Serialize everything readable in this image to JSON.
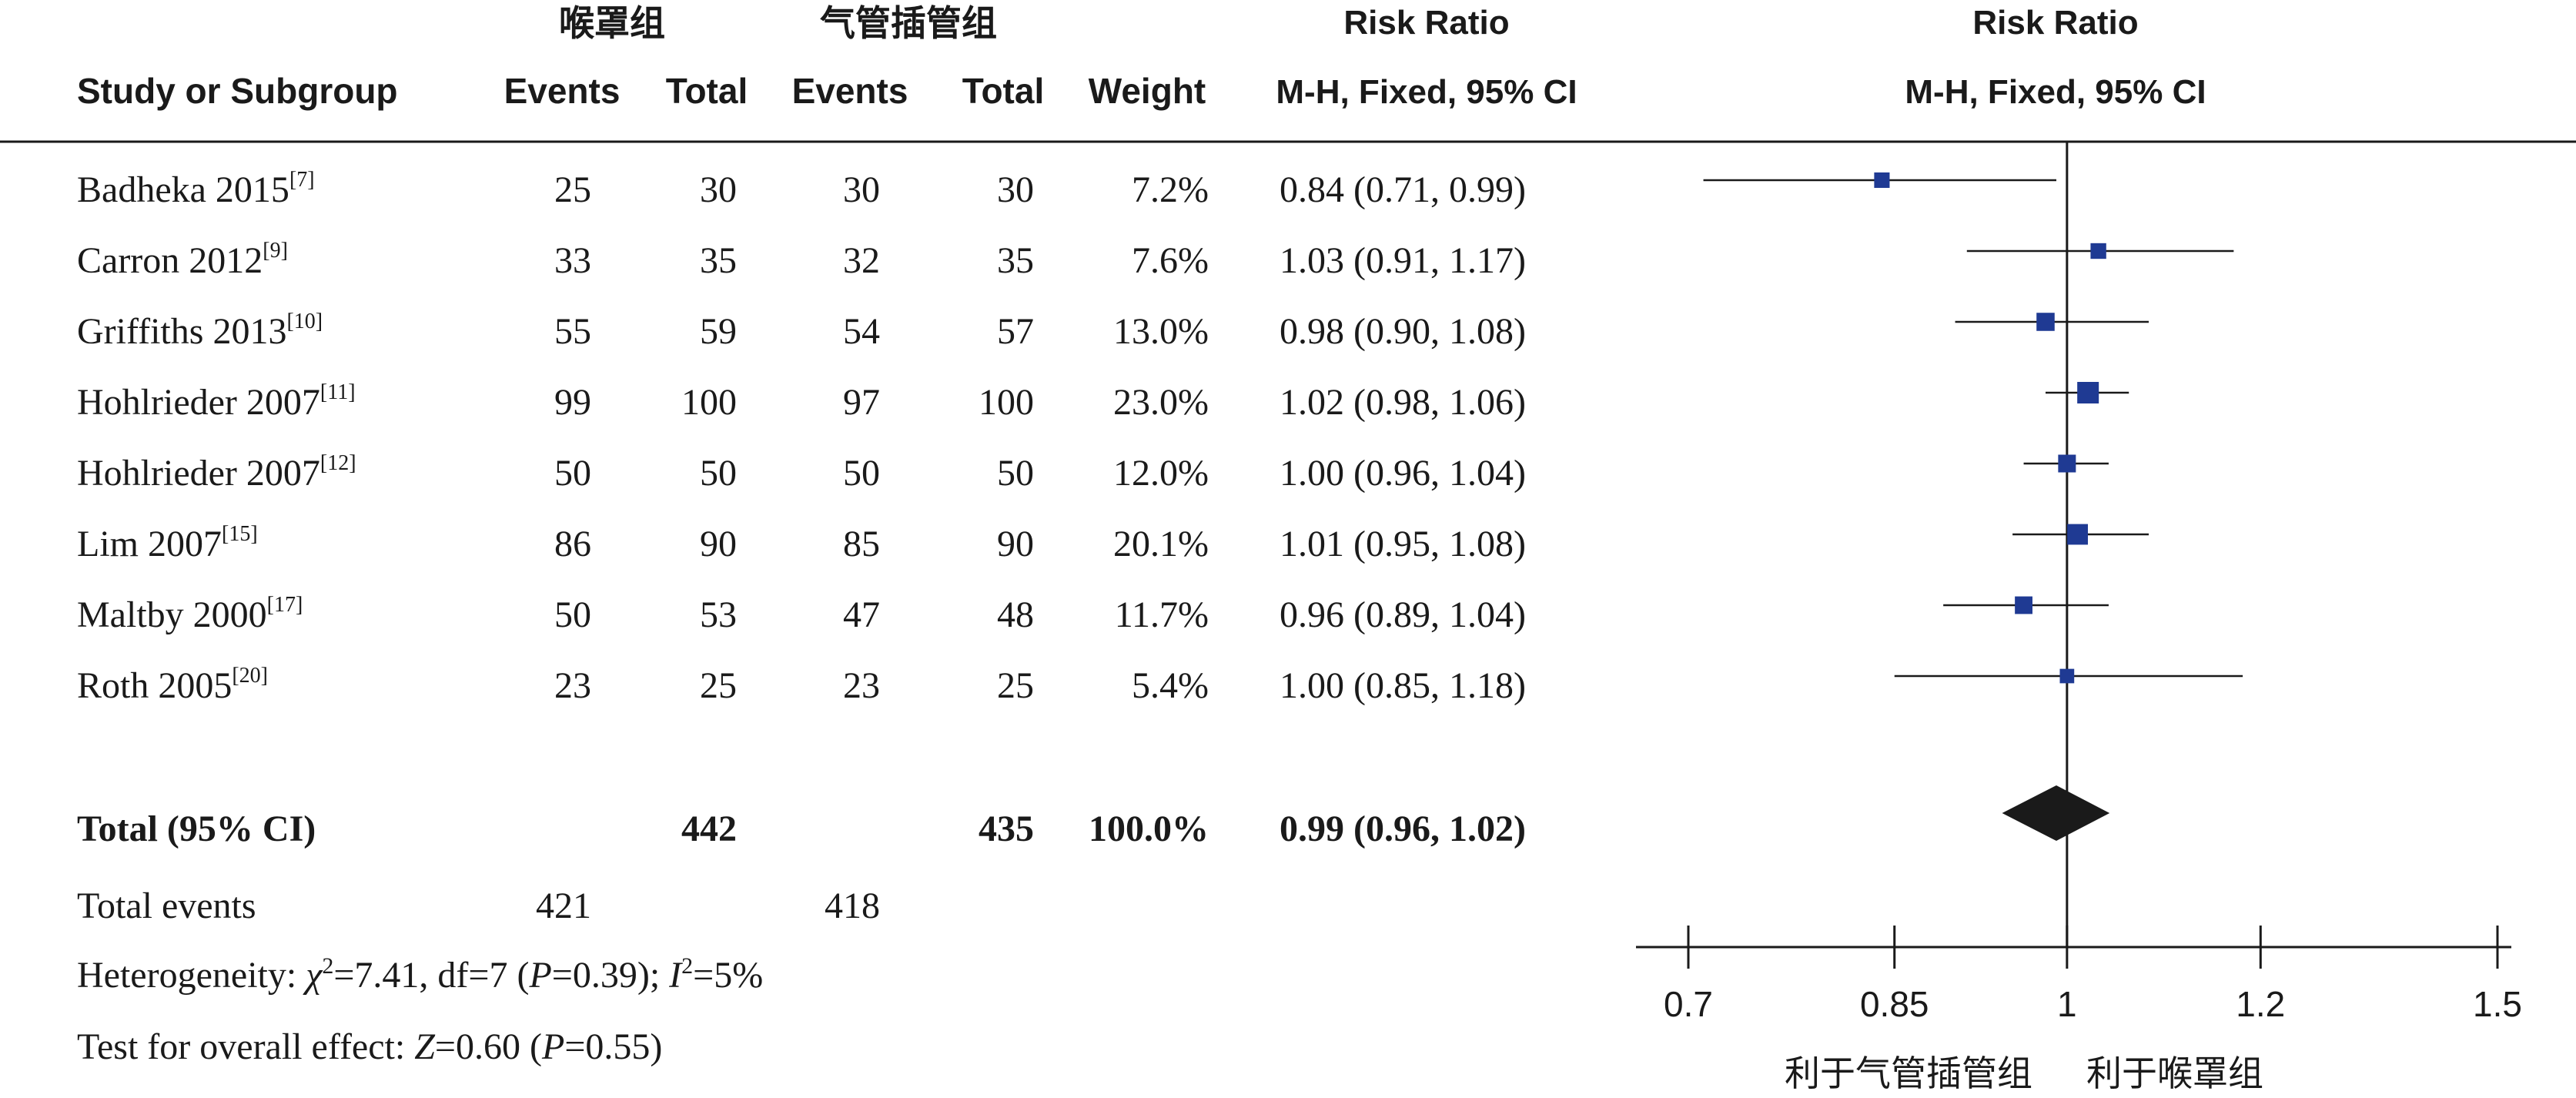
{
  "header": {
    "group1_name": "喉罩组",
    "group2_name": "气管插管组",
    "col_study": "Study or Subgroup",
    "col_events1": "Events",
    "col_total1": "Total",
    "col_events2": "Events",
    "col_total2": "Total",
    "col_weight": "Weight",
    "col_rr_title": "Risk Ratio",
    "col_rr_method": "M-H, Fixed, 95% CI",
    "plot_title": "Risk Ratio",
    "plot_method": "M-H, Fixed, 95% CI"
  },
  "chart_data": {
    "type": "forest",
    "title": "",
    "xlabel": "",
    "ylabel": "",
    "x_ticks": [
      0.7,
      0.85,
      1,
      1.2,
      1.5
    ],
    "x_tick_labels": [
      "0.7",
      "0.85",
      "1",
      "1.2",
      "1.5"
    ],
    "xlim": [
      0.7,
      1.5
    ],
    "x_scale": "log",
    "null_line": 1,
    "favors_left": "利于气管插管组",
    "favors_right": "利于喉罩组",
    "studies": [
      {
        "name": "Badheka 2015",
        "ref": "[7]",
        "events1": 25,
        "total1": 30,
        "events2": 30,
        "total2": 30,
        "weight": "7.2%",
        "weight_value": 7.2,
        "rr": 0.84,
        "lo": 0.71,
        "hi": 0.99,
        "ci_text": "0.84 (0.71, 0.99)"
      },
      {
        "name": "Carron 2012",
        "ref": "[9]",
        "events1": 33,
        "total1": 35,
        "events2": 32,
        "total2": 35,
        "weight": "7.6%",
        "weight_value": 7.6,
        "rr": 1.03,
        "lo": 0.91,
        "hi": 1.17,
        "ci_text": "1.03 (0.91, 1.17)"
      },
      {
        "name": "Griffiths 2013",
        "ref": "[10]",
        "events1": 55,
        "total1": 59,
        "events2": 54,
        "total2": 57,
        "weight": "13.0%",
        "weight_value": 13.0,
        "rr": 0.98,
        "lo": 0.9,
        "hi": 1.08,
        "ci_text": "0.98 (0.90, 1.08)"
      },
      {
        "name": "Hohlrieder 2007",
        "ref": "[11]",
        "events1": 99,
        "total1": 100,
        "events2": 97,
        "total2": 100,
        "weight": "23.0%",
        "weight_value": 23.0,
        "rr": 1.02,
        "lo": 0.98,
        "hi": 1.06,
        "ci_text": "1.02 (0.98, 1.06)"
      },
      {
        "name": "Hohlrieder 2007",
        "ref": "[12]",
        "events1": 50,
        "total1": 50,
        "events2": 50,
        "total2": 50,
        "weight": "12.0%",
        "weight_value": 12.0,
        "rr": 1.0,
        "lo": 0.96,
        "hi": 1.04,
        "ci_text": "1.00 (0.96, 1.04)"
      },
      {
        "name": "Lim 2007",
        "ref": "[15]",
        "events1": 86,
        "total1": 90,
        "events2": 85,
        "total2": 90,
        "weight": "20.1%",
        "weight_value": 20.1,
        "rr": 1.01,
        "lo": 0.95,
        "hi": 1.08,
        "ci_text": "1.01 (0.95, 1.08)"
      },
      {
        "name": "Maltby 2000",
        "ref": "[17]",
        "events1": 50,
        "total1": 53,
        "events2": 47,
        "total2": 48,
        "weight": "11.7%",
        "weight_value": 11.7,
        "rr": 0.96,
        "lo": 0.89,
        "hi": 1.04,
        "ci_text": "0.96 (0.89, 1.04)"
      },
      {
        "name": "Roth 2005",
        "ref": "[20]",
        "events1": 23,
        "total1": 25,
        "events2": 23,
        "total2": 25,
        "weight": "5.4%",
        "weight_value": 5.4,
        "rr": 1.0,
        "lo": 0.85,
        "hi": 1.18,
        "ci_text": "1.00 (0.85, 1.18)"
      }
    ],
    "total": {
      "label": "Total (95% CI)",
      "total1": 442,
      "total2": 435,
      "weight": "100.0%",
      "rr": 0.99,
      "lo": 0.96,
      "hi": 1.02,
      "ci_text": "0.99 (0.96, 1.02)"
    },
    "total_events": {
      "label": "Total events",
      "events1": 421,
      "events2": 418
    },
    "heterogeneity": {
      "label": "Heterogeneity: ",
      "chi_symbol": "χ",
      "chi_sup": "2",
      "chi_value": "=7.41, df=7 (",
      "p_symbol": "P",
      "p_value": "=0.39); ",
      "i_symbol": "I",
      "i_sup": "2",
      "i_value": "=5%"
    },
    "overall_effect": {
      "label": "Test for overall effect: ",
      "z_symbol": "Z",
      "z_value": "=0.60 (",
      "p_symbol": "P",
      "p_value": "=0.55)"
    },
    "colors": {
      "marker": "#1f3a93",
      "diamond": "#1a1a1a",
      "line": "#1a1a1a"
    }
  }
}
